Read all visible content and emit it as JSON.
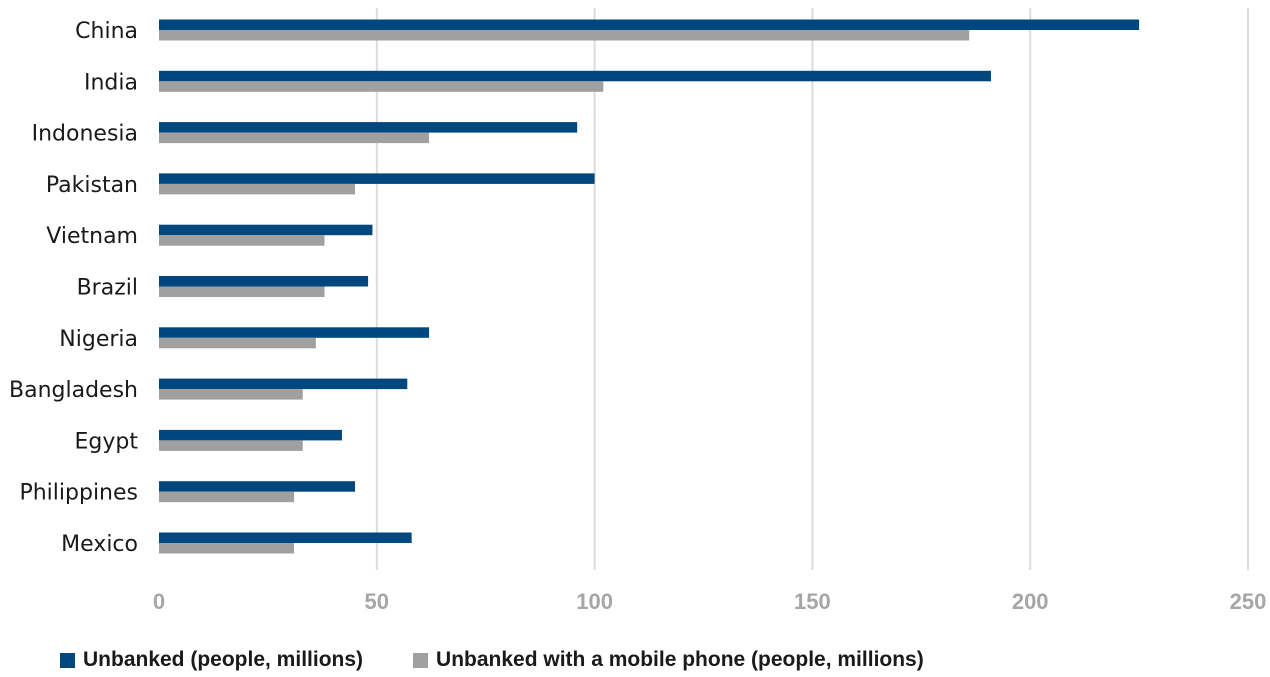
{
  "chart_data": {
    "type": "bar",
    "orientation": "horizontal",
    "categories": [
      "China",
      "India",
      "Indonesia",
      "Pakistan",
      "Vietnam",
      "Brazil",
      "Nigeria",
      "Bangladesh",
      "Egypt",
      "Philippines",
      "Mexico"
    ],
    "series": [
      {
        "name": "Unbanked (people, millions)",
        "color": "#00467f",
        "values": [
          225,
          191,
          96,
          100,
          49,
          48,
          62,
          57,
          42,
          45,
          58
        ]
      },
      {
        "name": "Unbanked with a mobile phone (people, millions)",
        "color": "#a0a0a0",
        "values": [
          186,
          102,
          62,
          45,
          38,
          38,
          36,
          33,
          33,
          31,
          31
        ]
      }
    ],
    "xlim": [
      0,
      250
    ],
    "xticks": [
      0,
      50,
      100,
      150,
      200,
      250
    ],
    "xtick_labels": [
      "0",
      "50",
      "100",
      "150",
      "200",
      "250"
    ],
    "grid": "vertical",
    "legend_position": "bottom-left",
    "title": "",
    "xlabel": "",
    "ylabel": ""
  }
}
